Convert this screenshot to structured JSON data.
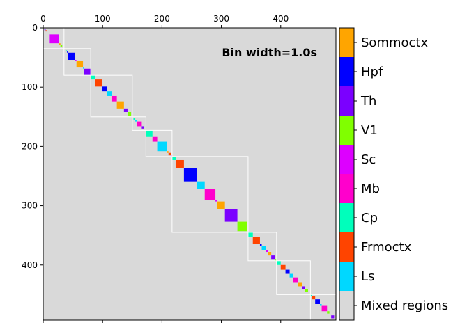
{
  "chart_data": {
    "type": "heatmap",
    "annotation": "Bin width=1.0s",
    "xlim": [
      0,
      493
    ],
    "ylim": [
      0,
      493
    ],
    "x_ticks": [
      0,
      100,
      200,
      300,
      400
    ],
    "y_ticks": [
      0,
      100,
      200,
      300,
      400
    ],
    "background_color": "#d9d9d9",
    "legend": [
      {
        "label": "Sommoctx",
        "color": "#ffa500"
      },
      {
        "label": "Hpf",
        "color": "#0000ff"
      },
      {
        "label": "Th",
        "color": "#7b00ff"
      },
      {
        "label": "V1",
        "color": "#80ff00"
      },
      {
        "label": "Sc",
        "color": "#dd00ff"
      },
      {
        "label": "Mb",
        "color": "#ff00cc"
      },
      {
        "label": "Cp",
        "color": "#00ffbb"
      },
      {
        "label": "Frmoctx",
        "color": "#ff4400"
      },
      {
        "label": "Ls",
        "color": "#00d8ff"
      },
      {
        "label": "Mixed regions",
        "color": "#d9d9d9"
      }
    ],
    "clusters": [
      {
        "start": 0,
        "end": 35
      },
      {
        "start": 35,
        "end": 80
      },
      {
        "start": 80,
        "end": 150
      },
      {
        "start": 150,
        "end": 173
      },
      {
        "start": 173,
        "end": 217
      },
      {
        "start": 217,
        "end": 345
      },
      {
        "start": 345,
        "end": 393
      },
      {
        "start": 393,
        "end": 450
      },
      {
        "start": 450,
        "end": 493
      }
    ],
    "blocks": [
      {
        "start": 2,
        "end": 4,
        "region": "Th"
      },
      {
        "start": 4,
        "end": 6,
        "region": "Frmoctx"
      },
      {
        "start": 11,
        "end": 26,
        "region": "Sc"
      },
      {
        "start": 26,
        "end": 29,
        "region": "Sommoctx"
      },
      {
        "start": 29,
        "end": 32,
        "region": "V1"
      },
      {
        "start": 38,
        "end": 40,
        "region": "Cp"
      },
      {
        "start": 40,
        "end": 42,
        "region": "Hpf"
      },
      {
        "start": 42,
        "end": 54,
        "region": "Hpf"
      },
      {
        "start": 54,
        "end": 56,
        "region": "Sc"
      },
      {
        "start": 56,
        "end": 67,
        "region": "Sommoctx"
      },
      {
        "start": 67,
        "end": 69,
        "region": "Ls"
      },
      {
        "start": 69,
        "end": 80,
        "region": "Th"
      },
      {
        "start": 80,
        "end": 87,
        "region": "Cp"
      },
      {
        "start": 87,
        "end": 99,
        "region": "Frmoctx"
      },
      {
        "start": 99,
        "end": 107,
        "region": "Hpf"
      },
      {
        "start": 107,
        "end": 115,
        "region": "Ls"
      },
      {
        "start": 115,
        "end": 124,
        "region": "Mb"
      },
      {
        "start": 124,
        "end": 136,
        "region": "Sommoctx"
      },
      {
        "start": 136,
        "end": 142,
        "region": "Th"
      },
      {
        "start": 142,
        "end": 148,
        "region": "V1"
      },
      {
        "start": 152,
        "end": 155,
        "region": "Cp"
      },
      {
        "start": 155,
        "end": 158,
        "region": "Ls"
      },
      {
        "start": 158,
        "end": 166,
        "region": "Mb"
      },
      {
        "start": 166,
        "end": 170,
        "region": "Th"
      },
      {
        "start": 173,
        "end": 184,
        "region": "Cp"
      },
      {
        "start": 184,
        "end": 192,
        "region": "Mb"
      },
      {
        "start": 192,
        "end": 208,
        "region": "Ls"
      },
      {
        "start": 208,
        "end": 211,
        "region": "Sommoctx"
      },
      {
        "start": 211,
        "end": 215,
        "region": "Frmoctx"
      },
      {
        "start": 215,
        "end": 217,
        "region": "Sc"
      },
      {
        "start": 217,
        "end": 223,
        "region": "Cp"
      },
      {
        "start": 223,
        "end": 237,
        "region": "Frmoctx"
      },
      {
        "start": 237,
        "end": 259,
        "region": "Hpf"
      },
      {
        "start": 259,
        "end": 272,
        "region": "Ls"
      },
      {
        "start": 272,
        "end": 290,
        "region": "Mb"
      },
      {
        "start": 290,
        "end": 293,
        "region": "Sc"
      },
      {
        "start": 293,
        "end": 306,
        "region": "Sommoctx"
      },
      {
        "start": 306,
        "end": 327,
        "region": "Th"
      },
      {
        "start": 327,
        "end": 343,
        "region": "V1"
      },
      {
        "start": 345,
        "end": 353,
        "region": "Cp"
      },
      {
        "start": 353,
        "end": 365,
        "region": "Frmoctx"
      },
      {
        "start": 365,
        "end": 368,
        "region": "Hpf"
      },
      {
        "start": 368,
        "end": 375,
        "region": "Ls"
      },
      {
        "start": 375,
        "end": 378,
        "region": "Sc"
      },
      {
        "start": 378,
        "end": 384,
        "region": "Sommoctx"
      },
      {
        "start": 384,
        "end": 390,
        "region": "Th"
      },
      {
        "start": 390,
        "end": 393,
        "region": "V1"
      },
      {
        "start": 393,
        "end": 400,
        "region": "Cp"
      },
      {
        "start": 400,
        "end": 408,
        "region": "Frmoctx"
      },
      {
        "start": 408,
        "end": 415,
        "region": "Hpf"
      },
      {
        "start": 415,
        "end": 421,
        "region": "Ls"
      },
      {
        "start": 421,
        "end": 429,
        "region": "Mb"
      },
      {
        "start": 429,
        "end": 436,
        "region": "Sommoctx"
      },
      {
        "start": 436,
        "end": 441,
        "region": "Th"
      },
      {
        "start": 441,
        "end": 446,
        "region": "V1"
      },
      {
        "start": 450,
        "end": 452,
        "region": "Cp"
      },
      {
        "start": 452,
        "end": 458,
        "region": "Frmoctx"
      },
      {
        "start": 458,
        "end": 466,
        "region": "Hpf"
      },
      {
        "start": 466,
        "end": 469,
        "region": "Ls"
      },
      {
        "start": 469,
        "end": 478,
        "region": "Mb"
      },
      {
        "start": 478,
        "end": 482,
        "region": "V1"
      },
      {
        "start": 485,
        "end": 490,
        "region": "Th"
      }
    ]
  }
}
